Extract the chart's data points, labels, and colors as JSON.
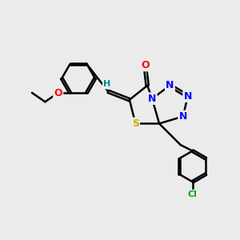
{
  "bg_color": "#ebebeb",
  "bond_color": "#000000",
  "bond_width": 1.8,
  "atom_colors": {
    "N": "#0000ff",
    "O": "#ff0000",
    "S": "#ccaa00",
    "Cl": "#00aa00",
    "C": "#000000",
    "H": "#008888"
  },
  "font_size": 9,
  "fig_size": [
    3.0,
    3.0
  ],
  "dpi": 100
}
